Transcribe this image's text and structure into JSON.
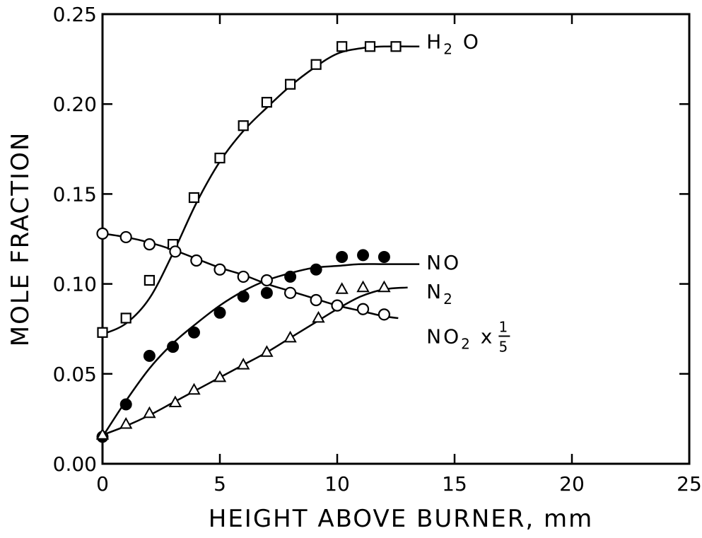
{
  "chart_data": {
    "type": "scatter",
    "xlabel": "HEIGHT ABOVE BURNER, mm",
    "ylabel": "MOLE FRACTION",
    "xlim": [
      0,
      25
    ],
    "ylim": [
      0,
      0.25
    ],
    "x_ticks": [
      "0",
      "5",
      "10",
      "15",
      "20",
      "25"
    ],
    "y_ticks": [
      "0.00",
      "0.05",
      "0.10",
      "0.15",
      "0.20",
      "0.25"
    ],
    "grid": false,
    "series": [
      {
        "name": "H2O",
        "label_main": "H",
        "label_sub": "2",
        "label_tail": "O",
        "marker": "open-square",
        "x": [
          0,
          1,
          2,
          3,
          3.9,
          5,
          6,
          7,
          8,
          9.1,
          10.2,
          11.4,
          12.5
        ],
        "y": [
          0.073,
          0.081,
          0.102,
          0.122,
          0.148,
          0.17,
          0.188,
          0.201,
          0.211,
          0.222,
          0.232,
          0.232,
          0.232
        ],
        "fit_x": [
          0,
          1,
          2,
          3,
          4,
          5,
          6,
          7,
          8,
          9,
          10,
          11,
          12,
          13.5
        ],
        "fit_y": [
          0.072,
          0.078,
          0.092,
          0.117,
          0.145,
          0.168,
          0.185,
          0.198,
          0.21,
          0.22,
          0.228,
          0.231,
          0.232,
          0.232
        ]
      },
      {
        "name": "NO",
        "label_main": "NO",
        "marker": "filled-circle",
        "x": [
          0,
          1,
          2,
          3,
          3.9,
          5,
          6,
          7,
          8,
          9.1,
          10.2,
          11.1,
          12
        ],
        "y": [
          0.015,
          0.033,
          0.06,
          0.065,
          0.073,
          0.084,
          0.093,
          0.095,
          0.104,
          0.108,
          0.115,
          0.116,
          0.115
        ],
        "fit_x": [
          0,
          1,
          2,
          3,
          4,
          5,
          6,
          7,
          8,
          9,
          10,
          11,
          12,
          13.5
        ],
        "fit_y": [
          0.015,
          0.035,
          0.053,
          0.067,
          0.078,
          0.088,
          0.096,
          0.102,
          0.106,
          0.109,
          0.11,
          0.111,
          0.111,
          0.111
        ]
      },
      {
        "name": "N2",
        "label_main": "N",
        "label_sub": "2",
        "marker": "open-triangle",
        "x": [
          0,
          1,
          2,
          3.1,
          3.9,
          5,
          6,
          7,
          8,
          9.2,
          10.2,
          11.1,
          12
        ],
        "y": [
          0.016,
          0.022,
          0.028,
          0.034,
          0.041,
          0.048,
          0.055,
          0.062,
          0.07,
          0.081,
          0.097,
          0.098,
          0.098
        ],
        "fit_x": [
          0,
          1,
          2,
          3,
          4,
          5,
          6,
          7,
          8,
          9,
          10,
          11,
          12,
          13
        ],
        "fit_y": [
          0.016,
          0.021,
          0.027,
          0.034,
          0.041,
          0.048,
          0.055,
          0.062,
          0.07,
          0.078,
          0.086,
          0.093,
          0.097,
          0.098
        ]
      },
      {
        "name": "NO2 x 1/5",
        "label_main": "NO",
        "label_sub": "2",
        "label_tail": "x",
        "label_frac_num": "1",
        "label_frac_den": "5",
        "marker": "open-circle",
        "x": [
          0,
          1,
          2,
          3.1,
          4,
          5,
          6,
          7,
          8,
          9.1,
          10,
          11.1,
          12
        ],
        "y": [
          0.128,
          0.126,
          0.122,
          0.118,
          0.113,
          0.108,
          0.104,
          0.102,
          0.095,
          0.091,
          0.088,
          0.086,
          0.083
        ],
        "fit_x": [
          0,
          1,
          2,
          3,
          4,
          5,
          6,
          7,
          8,
          9,
          10,
          11,
          12,
          12.6
        ],
        "fit_y": [
          0.128,
          0.126,
          0.123,
          0.119,
          0.114,
          0.109,
          0.105,
          0.1,
          0.096,
          0.092,
          0.088,
          0.085,
          0.082,
          0.081
        ]
      }
    ]
  }
}
